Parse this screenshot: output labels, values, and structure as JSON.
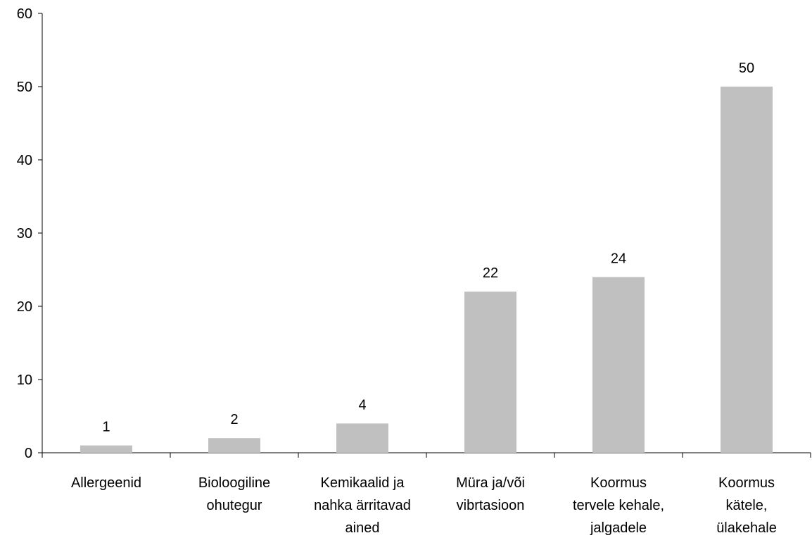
{
  "chart_data": {
    "type": "bar",
    "categories": [
      [
        "Allergeenid"
      ],
      [
        "Bioloogiline",
        "ohutegur"
      ],
      [
        "Kemikaalid ja",
        "nahka ärritavad",
        "ained"
      ],
      [
        "Müra ja/või",
        "vibrtasioon"
      ],
      [
        "Koormus",
        "tervele kehale,",
        "jalgadele"
      ],
      [
        "Koormus",
        "kätele,",
        "ülakehale"
      ]
    ],
    "values": [
      1,
      2,
      4,
      22,
      24,
      50
    ],
    "ylim": [
      0,
      60
    ],
    "yticks": [
      0,
      10,
      20,
      30,
      40,
      50,
      60
    ],
    "bar_color": "#c0c0c0",
    "grid": false,
    "legend": false,
    "title": "",
    "xlabel": "",
    "ylabel": ""
  }
}
